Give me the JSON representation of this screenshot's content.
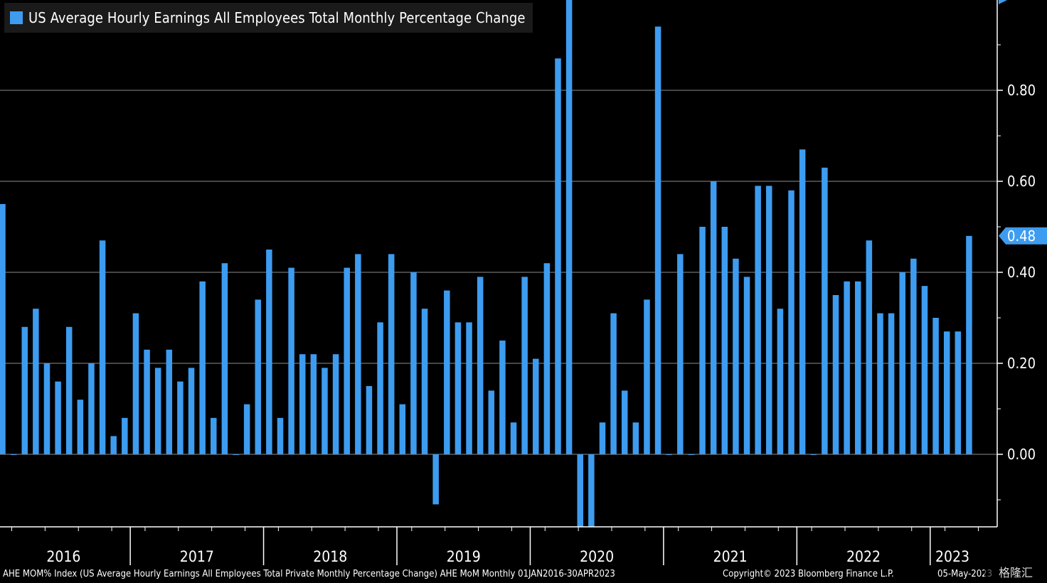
{
  "legend": {
    "label": "US Average Hourly Earnings All Employees Total Monthly Percentage Change"
  },
  "colors": {
    "bar": "#3d9cf0",
    "background": "#000000",
    "grid": "#8c8c8c",
    "axis": "#ffffff"
  },
  "footer": {
    "description": "AHE MOM% Index (US Average Hourly Earnings All Employees Total Private Monthly Percentage Change) AHE MoM  Monthly 01JAN2016-30APR2023",
    "copyright": "Copyright© 2023 Bloomberg Finance L.P.",
    "date": "05-May-2023",
    "watermark": "格隆汇"
  },
  "chart_data": {
    "type": "bar",
    "title": "US Average Hourly Earnings All Employees Total Monthly Percentage Change",
    "ylim": [
      -0.16,
      1.0
    ],
    "y_ticks": [
      0.0,
      0.2,
      0.4,
      0.6,
      0.8
    ],
    "y_tick_labels": [
      "0.00",
      "0.20",
      "0.40",
      "0.60",
      "0.80"
    ],
    "grid": true,
    "last_value_label": "0.48",
    "x_labels": [
      "2016",
      "2017",
      "2018",
      "2019",
      "2020",
      "2021",
      "2022",
      "2023"
    ],
    "series": [
      {
        "values": [
          0.55,
          0.0,
          0.28,
          0.32,
          0.2,
          0.16,
          0.28,
          0.12,
          0.2,
          0.47,
          0.04,
          0.08,
          0.31,
          0.23,
          0.19,
          0.23,
          0.16,
          0.19,
          0.38,
          0.08,
          0.42,
          0.0,
          0.11,
          0.34,
          0.45,
          0.08,
          0.41,
          0.22,
          0.22,
          0.19,
          0.22,
          0.41,
          0.44,
          0.15,
          0.29,
          0.44,
          0.11,
          0.4,
          0.32,
          -0.11,
          0.36,
          0.29,
          0.29,
          0.39,
          0.14,
          0.25,
          0.07,
          0.39,
          0.21,
          0.42,
          0.87,
          1.05,
          -0.16,
          -0.16,
          0.07,
          0.31,
          0.14,
          0.07,
          0.34,
          0.94,
          0.0,
          0.44,
          0.0,
          0.5,
          0.6,
          0.5,
          0.43,
          0.39,
          0.59,
          0.59,
          0.32,
          0.58,
          0.67,
          0.0,
          0.63,
          0.35,
          0.38,
          0.38,
          0.47,
          0.31,
          0.31,
          0.4,
          0.43,
          0.37,
          0.3,
          0.27,
          0.27,
          0.48
        ]
      }
    ]
  }
}
